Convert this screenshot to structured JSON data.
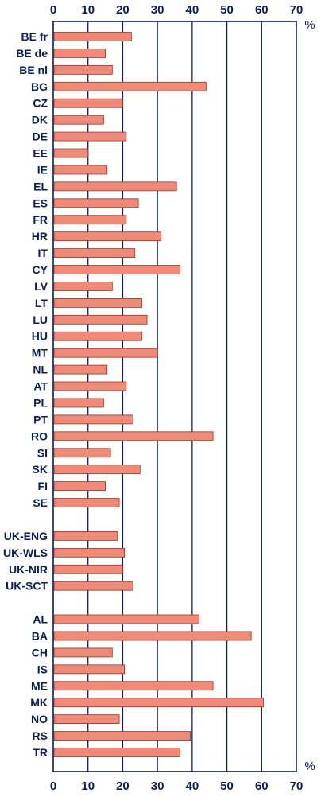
{
  "chart_data": {
    "type": "bar",
    "orientation": "horizontal",
    "unit_label": "%",
    "xlim": [
      0,
      70
    ],
    "xticks": [
      0,
      10,
      20,
      30,
      40,
      50,
      60,
      70
    ],
    "grid": true,
    "colors": {
      "bar_fill": "#F08A78",
      "bar_stroke": "#8A3A32",
      "axis": "#0B1F4F",
      "text": "#0B1F4F"
    },
    "categories": [
      "BE fr",
      "BE de",
      "BE nl",
      "BG",
      "CZ",
      "DK",
      "DE",
      "EE",
      "IE",
      "EL",
      "ES",
      "FR",
      "HR",
      "IT",
      "CY",
      "LV",
      "LT",
      "LU",
      "HU",
      "MT",
      "NL",
      "AT",
      "PL",
      "PT",
      "RO",
      "SI",
      "SK",
      "FI",
      "SE",
      "",
      "UK-ENG",
      "UK-WLS",
      "UK-NIR",
      "UK-SCT",
      "",
      "AL",
      "BA",
      "CH",
      "IS",
      "ME",
      "MK",
      "NO",
      "RS",
      "TR"
    ],
    "values": [
      22.5,
      15,
      17,
      44,
      20,
      14.5,
      21,
      10,
      15.5,
      35.5,
      24.5,
      21,
      31,
      23.5,
      36.5,
      17,
      25.5,
      27,
      25.5,
      30,
      15.5,
      21,
      14.5,
      23,
      46,
      16.5,
      25,
      15,
      19,
      null,
      18.5,
      20.5,
      20,
      23,
      null,
      42,
      57,
      17,
      20.5,
      46,
      60.5,
      19,
      39.5,
      36.5
    ]
  }
}
